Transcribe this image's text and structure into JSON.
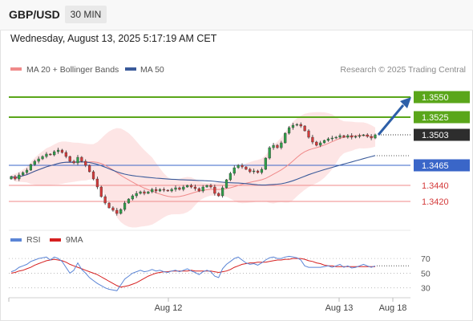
{
  "header": {
    "pair": "GBP/USD",
    "timeframe": "30 MIN"
  },
  "datetime": "Wednesday, August 13, 2025 5:17:19 AM CET",
  "credit": "Research © 2025 Trading Central",
  "colors": {
    "green_level": "#5aa61a",
    "blue_level": "#3a66c8",
    "red_level": "#f08a8a",
    "price_box": "#2d2d2d",
    "bull_candle": "#2fa04a",
    "bear_candle": "#d73a3a",
    "ma20": "#f08a8a",
    "band_fill": "#fde0e0",
    "ma50": "#3a5a9a",
    "arrow": "#2d5fa8",
    "rsi": "#5b85d6",
    "rsi_ma": "#d62020"
  },
  "chart_data": [
    {
      "type": "candlestick",
      "legend": [
        {
          "name": "MA 20 + Bollinger Bands",
          "color": "#f08a8a"
        },
        {
          "name": "MA 50",
          "color": "#3a5a9a"
        }
      ],
      "ylim": [
        1.3395,
        1.3575
      ],
      "x_labels": [
        "Aug 12",
        "Aug 13",
        "Aug 18"
      ],
      "levels": [
        {
          "value": 1.355,
          "label": "1.3550",
          "kind": "target",
          "color": "#5aa61a"
        },
        {
          "value": 1.3525,
          "label": "1.3525",
          "kind": "target",
          "color": "#5aa61a"
        },
        {
          "value": 1.3503,
          "label": "1.3503",
          "kind": "last_price",
          "color": "#2d2d2d"
        },
        {
          "value": 1.3465,
          "label": "1.3465",
          "kind": "pivot",
          "color": "#3a66c8"
        },
        {
          "value": 1.344,
          "label": "1.3440",
          "kind": "support",
          "color": "#f08a8a"
        },
        {
          "value": 1.342,
          "label": "1.3420",
          "kind": "support",
          "color": "#f08a8a"
        }
      ],
      "closes": [
        1.3451,
        1.3448,
        1.3453,
        1.3456,
        1.3459,
        1.3466,
        1.347,
        1.3473,
        1.3476,
        1.3479,
        1.3478,
        1.3482,
        1.3484,
        1.3481,
        1.3476,
        1.347,
        1.3468,
        1.3475,
        1.347,
        1.3465,
        1.3457,
        1.3448,
        1.3438,
        1.3426,
        1.3418,
        1.3412,
        1.3409,
        1.3405,
        1.341,
        1.3418,
        1.3423,
        1.3427,
        1.343,
        1.3432,
        1.343,
        1.3432,
        1.3435,
        1.3433,
        1.3435,
        1.3434,
        1.3433,
        1.3435,
        1.3437,
        1.3435,
        1.3438,
        1.344,
        1.3438,
        1.3436,
        1.3433,
        1.3438,
        1.344,
        1.3438,
        1.343,
        1.3427,
        1.3437,
        1.3447,
        1.3455,
        1.3462,
        1.3465,
        1.3463,
        1.346,
        1.3457,
        1.3458,
        1.3456,
        1.346,
        1.3474,
        1.3487,
        1.349,
        1.3487,
        1.3493,
        1.3505,
        1.3512,
        1.3515,
        1.3516,
        1.3514,
        1.3508,
        1.35,
        1.3494,
        1.349,
        1.3493,
        1.3496,
        1.3498,
        1.3499,
        1.35,
        1.3502,
        1.35,
        1.3502,
        1.35,
        1.3501,
        1.3502,
        1.3503,
        1.3501,
        1.3499,
        1.3503
      ]
    },
    {
      "type": "line",
      "legend": [
        {
          "name": "RSI",
          "color": "#5b85d6"
        },
        {
          "name": "9MA",
          "color": "#d62020"
        }
      ],
      "ylim": [
        22,
        80
      ],
      "y_ticks": [
        30,
        50,
        70
      ],
      "rsi": [
        52,
        54,
        58,
        60,
        62,
        66,
        68,
        70,
        71,
        72,
        68,
        72,
        70,
        66,
        58,
        50,
        54,
        64,
        55,
        50,
        44,
        40,
        36,
        33,
        30,
        28,
        27,
        26,
        34,
        42,
        46,
        50,
        52,
        54,
        52,
        53,
        55,
        53,
        54,
        52,
        51,
        53,
        54,
        52,
        54,
        56,
        53,
        51,
        48,
        52,
        54,
        52,
        46,
        44,
        56,
        62,
        66,
        70,
        72,
        68,
        64,
        62,
        63,
        61,
        64,
        68,
        71,
        72,
        70,
        70,
        72,
        73,
        72,
        71,
        68,
        60,
        58,
        58,
        58,
        58,
        59,
        60,
        58,
        60,
        62,
        58,
        60,
        57,
        58,
        60,
        62,
        60,
        58,
        60
      ],
      "ma": [
        50,
        51,
        53,
        54,
        56,
        58,
        61,
        63,
        65,
        67,
        68,
        69,
        68,
        67,
        65,
        62,
        60,
        58,
        56,
        54,
        52,
        50,
        48,
        45,
        42,
        39,
        36,
        33,
        31,
        32,
        33,
        35,
        37,
        40,
        43,
        46,
        48,
        50,
        51,
        52,
        52,
        53,
        53,
        53,
        53,
        53,
        54,
        53,
        53,
        53,
        53,
        53,
        52,
        51,
        52,
        53,
        55,
        58,
        60,
        62,
        63,
        64,
        64,
        65,
        65,
        65,
        66,
        67,
        68,
        68,
        69,
        69,
        70,
        70,
        70,
        69,
        67,
        66,
        64,
        63,
        61,
        60,
        60,
        59,
        59,
        59,
        59,
        59,
        59,
        59,
        59,
        59,
        59,
        59
      ]
    }
  ]
}
